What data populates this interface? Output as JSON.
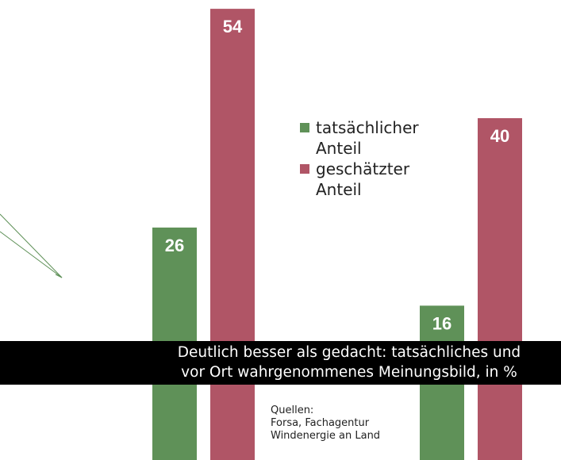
{
  "chart_data": {
    "type": "bar",
    "title": "Deutlich besser als gedacht: tatsächliches und\nvor Ort wahrgenommenes Meinungsbild, in %",
    "source": "Quellen:\nForsa, Fachagentur\nWindenergie an Land",
    "categories": [
      null,
      null
    ],
    "series": [
      {
        "name": "tatsächlicher Anteil",
        "color": "#5f9158",
        "values": [
          26,
          16
        ]
      },
      {
        "name": "geschätzter Anteil",
        "color": "#b05566",
        "values": [
          54,
          40
        ]
      }
    ]
  }
}
